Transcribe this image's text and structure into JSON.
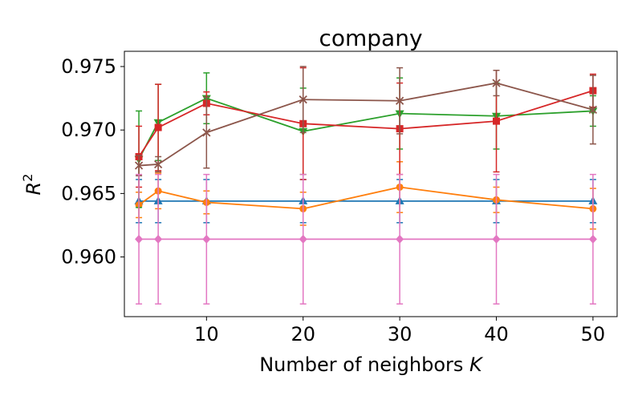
{
  "chart_data": {
    "type": "line",
    "title": "company",
    "xlabel_prefix": "Number of neighbors ",
    "xlabel_var": "K",
    "ylabel_base": "R",
    "ylabel_exp": "2",
    "x": [
      3,
      5,
      10,
      20,
      30,
      40,
      50
    ],
    "xlim": [
      1.5,
      52.5
    ],
    "ylim": [
      0.9553,
      0.9762
    ],
    "xticks": [
      10,
      20,
      30,
      40,
      50
    ],
    "xtick_labels": [
      "10",
      "20",
      "30",
      "40",
      "50"
    ],
    "yticks": [
      0.96,
      0.965,
      0.97,
      0.975
    ],
    "ytick_labels": [
      "0.960",
      "0.965",
      "0.970",
      "0.975"
    ],
    "grid": false,
    "legend": "none",
    "series": [
      {
        "color": "#1f77b4",
        "marker": "triangle-up",
        "values": [
          0.9644,
          0.9644,
          0.9644,
          0.9644,
          0.9644,
          0.9644,
          0.9644
        ],
        "err": [
          0.0017,
          0.0017,
          0.0017,
          0.0017,
          0.0017,
          0.0017,
          0.0017
        ]
      },
      {
        "color": "#ff7f0e",
        "marker": "circle",
        "values": [
          0.9641,
          0.9652,
          0.9643,
          0.9638,
          0.9655,
          0.9645,
          0.9638
        ],
        "err": [
          0.001,
          0.0014,
          0.0009,
          0.0013,
          0.002,
          0.001,
          0.0016
        ]
      },
      {
        "color": "#2ca02c",
        "marker": "triangle-down",
        "values": [
          0.9677,
          0.9706,
          0.9725,
          0.9699,
          0.9713,
          0.9711,
          0.9715
        ],
        "err": [
          0.0038,
          0.003,
          0.002,
          0.0034,
          0.0028,
          0.0026,
          0.0012
        ]
      },
      {
        "color": "#d62728",
        "marker": "square",
        "values": [
          0.9679,
          0.9702,
          0.9721,
          0.9705,
          0.9701,
          0.9707,
          0.9731
        ],
        "err": [
          0.0024,
          0.0034,
          0.0009,
          0.0044,
          0.0036,
          0.004,
          0.0013
        ]
      },
      {
        "color": "#8c564b",
        "marker": "x",
        "values": [
          0.9672,
          0.9673,
          0.9698,
          0.9724,
          0.9723,
          0.9737,
          0.9716
        ],
        "err": [
          0.0008,
          0.0006,
          0.0028,
          0.0026,
          0.0026,
          0.001,
          0.0027
        ]
      },
      {
        "color": "#e377c2",
        "marker": "diamond",
        "values": [
          0.9614,
          0.9614,
          0.9614,
          0.9614,
          0.9614,
          0.9614,
          0.9614
        ],
        "err": [
          0.0051,
          0.0051,
          0.0051,
          0.0051,
          0.0051,
          0.0051,
          0.0051
        ]
      }
    ]
  }
}
